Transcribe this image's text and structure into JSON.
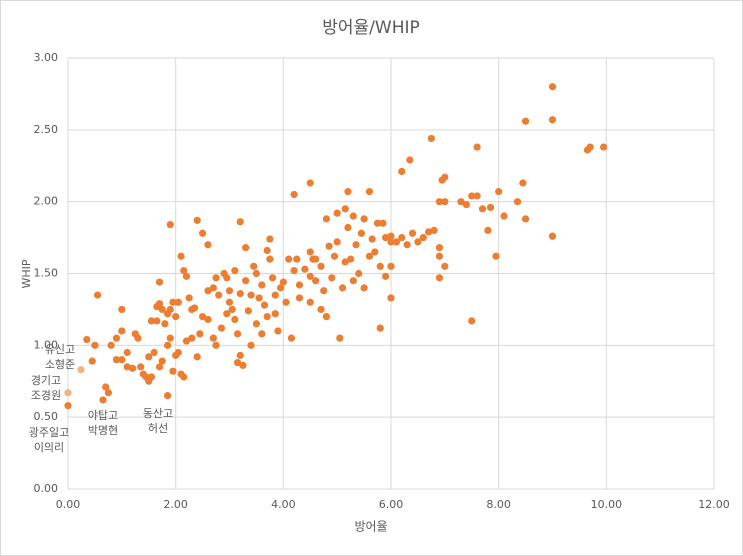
{
  "chart_data": {
    "type": "scatter",
    "title": "방어율/WHIP",
    "x_label": "방어율",
    "y_label": "WHIP",
    "xlim": [
      0,
      12
    ],
    "ylim": [
      0,
      3
    ],
    "grid": true,
    "legend": "none",
    "xticks": [
      {
        "value": 0,
        "label": "0.00"
      },
      {
        "value": 2,
        "label": "2.00"
      },
      {
        "value": 4,
        "label": "4.00"
      },
      {
        "value": 6,
        "label": "6.00"
      },
      {
        "value": 8,
        "label": "8.00"
      },
      {
        "value": 10,
        "label": "10.00"
      },
      {
        "value": 12,
        "label": "12.00"
      }
    ],
    "yticks": [
      {
        "value": 0,
        "label": "0.00"
      },
      {
        "value": 0.5,
        "label": "0.50"
      },
      {
        "value": 1,
        "label": "1.00"
      },
      {
        "value": 1.5,
        "label": "1.50"
      },
      {
        "value": 2,
        "label": "2.00"
      },
      {
        "value": 2.5,
        "label": "2.50"
      },
      {
        "value": 3,
        "label": "3.00"
      }
    ],
    "series": [
      {
        "color": "#ed7d31",
        "x": [
          9.0,
          9.0,
          8.5,
          9.95,
          9.7,
          9.65,
          7.6,
          6.75,
          6.35,
          6.2,
          4.5,
          4.2,
          7.0,
          6.95,
          8.45,
          7.5,
          7.6,
          8.0,
          7.3,
          7.4,
          6.9,
          7.0,
          7.7,
          7.85,
          8.35,
          8.5,
          8.1,
          7.8,
          9.0,
          7.95,
          7.5,
          5.8,
          6.0,
          0.55,
          1.9,
          2.4,
          3.2,
          3.75,
          0.65,
          1.85,
          0.45,
          0.35,
          0.0,
          0.5,
          0.8,
          0.9,
          1.0,
          0.9,
          1.0,
          1.1,
          1.0,
          0.7,
          0.75,
          1.1,
          1.2,
          1.25,
          1.3,
          1.35,
          1.4,
          1.45,
          1.5,
          1.55,
          1.5,
          1.6,
          1.55,
          1.65,
          1.7,
          1.75,
          1.7,
          1.65,
          1.8,
          1.85,
          1.9,
          1.95,
          2.0,
          1.7,
          1.75,
          1.85,
          1.9,
          1.95,
          2.0,
          2.05,
          2.1,
          2.15,
          2.1,
          2.15,
          2.2,
          2.25,
          2.2,
          2.3,
          2.35,
          2.4,
          2.45,
          2.5,
          2.6,
          2.6,
          2.7,
          2.75,
          2.8,
          2.85,
          2.7,
          2.75,
          2.9,
          2.95,
          3.0,
          3.0,
          3.05,
          3.1,
          3.1,
          3.15,
          3.2,
          3.15,
          3.25,
          3.3,
          3.3,
          3.35,
          3.4,
          3.45,
          3.5,
          3.5,
          3.55,
          3.6,
          3.65,
          3.7,
          3.7,
          3.75,
          3.8,
          3.85,
          3.9,
          3.95,
          4.0,
          4.05,
          4.1,
          4.15,
          4.2,
          4.25,
          4.3,
          4.4,
          4.5,
          4.5,
          4.55,
          4.5,
          4.6,
          4.7,
          4.75,
          4.8,
          4.8,
          4.85,
          4.9,
          4.95,
          5.0,
          5.0,
          5.05,
          5.1,
          5.15,
          5.2,
          5.2,
          5.25,
          5.3,
          5.35,
          5.4,
          5.45,
          5.5,
          5.5,
          5.6,
          5.6,
          5.65,
          5.7,
          5.75,
          5.8,
          5.85,
          5.9,
          6.0,
          6.0,
          6.1,
          6.2,
          6.3,
          6.4,
          6.5,
          6.6,
          6.7,
          6.8,
          6.9,
          6.9,
          6.9,
          7.0,
          5.9,
          6.0,
          5.3,
          4.6,
          3.2,
          2.95,
          2.6,
          2.5,
          2.3,
          2.05,
          3.6,
          3.4,
          3.85,
          4.3,
          4.7,
          5.15
        ],
        "y": [
          2.8,
          2.57,
          2.56,
          2.38,
          2.38,
          2.36,
          2.38,
          2.44,
          2.29,
          2.21,
          2.13,
          2.05,
          2.17,
          2.15,
          2.13,
          2.04,
          2.04,
          2.07,
          2.0,
          1.98,
          2.0,
          2.0,
          1.95,
          1.96,
          2.0,
          1.88,
          1.9,
          1.8,
          1.76,
          1.62,
          1.17,
          1.12,
          1.33,
          1.35,
          1.84,
          1.87,
          1.86,
          1.74,
          0.62,
          0.65,
          0.89,
          1.04,
          0.58,
          1.0,
          1.0,
          1.05,
          1.1,
          0.9,
          0.9,
          0.95,
          1.25,
          0.71,
          0.67,
          0.85,
          0.84,
          1.08,
          1.05,
          0.85,
          0.8,
          0.78,
          0.75,
          0.78,
          0.92,
          0.95,
          1.17,
          1.27,
          1.29,
          1.25,
          1.44,
          1.17,
          1.15,
          1.22,
          1.25,
          1.3,
          1.2,
          0.85,
          0.89,
          1.0,
          1.05,
          0.82,
          0.93,
          0.95,
          0.8,
          0.78,
          1.62,
          1.52,
          1.48,
          1.33,
          1.03,
          1.05,
          1.26,
          0.92,
          1.08,
          1.78,
          1.7,
          1.38,
          1.4,
          1.47,
          1.35,
          1.12,
          1.05,
          1.0,
          1.5,
          1.47,
          1.3,
          1.38,
          1.25,
          1.52,
          1.18,
          1.08,
          0.93,
          0.88,
          0.86,
          1.68,
          1.45,
          1.24,
          1.35,
          1.55,
          1.5,
          1.15,
          1.33,
          1.42,
          1.28,
          1.66,
          1.2,
          1.6,
          1.47,
          1.35,
          1.1,
          1.4,
          1.44,
          1.3,
          1.6,
          1.05,
          1.52,
          1.6,
          1.33,
          1.53,
          1.48,
          1.65,
          1.6,
          1.3,
          1.45,
          1.55,
          1.38,
          1.2,
          1.88,
          1.69,
          1.47,
          1.62,
          1.92,
          1.72,
          1.05,
          1.4,
          1.58,
          1.82,
          2.07,
          1.6,
          1.9,
          1.7,
          1.5,
          1.78,
          1.88,
          1.4,
          1.62,
          2.07,
          1.74,
          1.65,
          1.85,
          1.55,
          1.85,
          1.75,
          1.72,
          1.55,
          1.72,
          1.75,
          1.7,
          1.78,
          1.72,
          1.75,
          1.79,
          1.8,
          1.68,
          1.62,
          1.47,
          1.55,
          1.48,
          1.76,
          1.45,
          1.6,
          1.36,
          1.22,
          1.18,
          1.2,
          1.25,
          1.3,
          1.08,
          1.0,
          1.22,
          1.42,
          1.25,
          1.95
        ]
      },
      {
        "color": "#f4b183",
        "x": [
          0.24,
          0
        ],
        "y": [
          0.83,
          0.67
        ]
      }
    ],
    "annotations": [
      {
        "lines": [
          "유신고",
          "소형준"
        ]
      },
      {
        "lines": [
          "경기고",
          "조경원"
        ]
      },
      {
        "lines": [
          "광주일고",
          "이의리"
        ]
      },
      {
        "lines": [
          "야탑고",
          "박명현"
        ]
      },
      {
        "lines": [
          "동산고",
          "허선"
        ]
      }
    ]
  }
}
